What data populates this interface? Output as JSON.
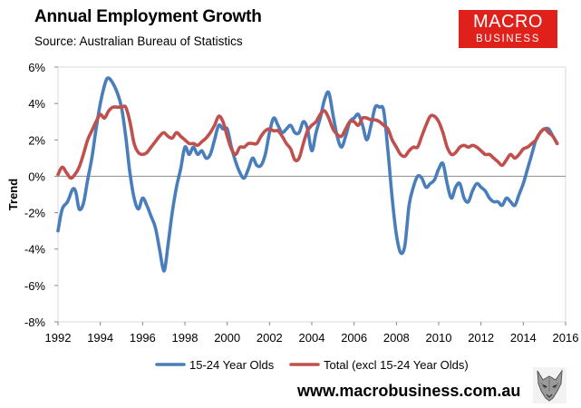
{
  "header": {
    "title": "Annual Employment Growth",
    "subtitle": "Source: Australian Bureau of Statistics"
  },
  "logo": {
    "line1": "MACRO",
    "line2": "BUSINESS"
  },
  "footer": {
    "url": "www.macrobusiness.com.au"
  },
  "colors": {
    "youth": "#4a7ebb",
    "total": "#c0504d",
    "logo_bg": "#e0201b"
  },
  "chart_data": {
    "type": "line",
    "title": "Annual Employment Growth",
    "xlabel": "",
    "ylabel": "Trend",
    "xlim": [
      1992,
      2016
    ],
    "ylim": [
      -8,
      6
    ],
    "xticks": [
      "1992",
      "1994",
      "1996",
      "1998",
      "2000",
      "2002",
      "2004",
      "2006",
      "2008",
      "2010",
      "2012",
      "2014",
      "2016"
    ],
    "yticks": [
      "6%",
      "4%",
      "2%",
      "0%",
      "-2%",
      "-4%",
      "-6%",
      "-8%"
    ],
    "grid": false,
    "legend": "bottom",
    "series": [
      {
        "name": "15-24 Year Olds",
        "color": "#4a7ebb",
        "points": [
          [
            1992.0,
            -3.0
          ],
          [
            1992.2,
            -1.8
          ],
          [
            1992.45,
            -1.4
          ],
          [
            1992.7,
            -0.7
          ],
          [
            1992.85,
            -0.9
          ],
          [
            1993.0,
            -1.8
          ],
          [
            1993.2,
            -1.5
          ],
          [
            1993.4,
            -0.2
          ],
          [
            1993.6,
            1.0
          ],
          [
            1993.8,
            2.6
          ],
          [
            1994.0,
            4.0
          ],
          [
            1994.2,
            5.0
          ],
          [
            1994.35,
            5.4
          ],
          [
            1994.55,
            5.2
          ],
          [
            1994.8,
            4.6
          ],
          [
            1995.0,
            3.8
          ],
          [
            1995.2,
            2.2
          ],
          [
            1995.4,
            0.2
          ],
          [
            1995.6,
            -1.2
          ],
          [
            1995.8,
            -1.8
          ],
          [
            1996.0,
            -1.2
          ],
          [
            1996.2,
            -1.6
          ],
          [
            1996.4,
            -2.2
          ],
          [
            1996.6,
            -2.8
          ],
          [
            1996.8,
            -4.0
          ],
          [
            1996.95,
            -5.0
          ],
          [
            1997.05,
            -5.1
          ],
          [
            1997.2,
            -3.8
          ],
          [
            1997.4,
            -2.0
          ],
          [
            1997.6,
            -0.6
          ],
          [
            1997.8,
            0.4
          ],
          [
            1998.0,
            1.6
          ],
          [
            1998.2,
            1.2
          ],
          [
            1998.4,
            1.6
          ],
          [
            1998.6,
            1.2
          ],
          [
            1998.8,
            1.4
          ],
          [
            1999.0,
            1.0
          ],
          [
            1999.2,
            1.2
          ],
          [
            1999.4,
            2.0
          ],
          [
            1999.6,
            2.8
          ],
          [
            1999.8,
            2.6
          ],
          [
            2000.0,
            2.6
          ],
          [
            2000.2,
            1.6
          ],
          [
            2000.4,
            0.8
          ],
          [
            2000.6,
            0.2
          ],
          [
            2000.8,
            -0.1
          ],
          [
            2001.0,
            0.4
          ],
          [
            2001.2,
            1.0
          ],
          [
            2001.4,
            0.6
          ],
          [
            2001.6,
            0.6
          ],
          [
            2001.8,
            1.2
          ],
          [
            2002.0,
            2.4
          ],
          [
            2002.2,
            3.2
          ],
          [
            2002.4,
            2.8
          ],
          [
            2002.6,
            2.4
          ],
          [
            2002.8,
            2.6
          ],
          [
            2003.0,
            2.8
          ],
          [
            2003.2,
            2.4
          ],
          [
            2003.4,
            2.4
          ],
          [
            2003.6,
            3.0
          ],
          [
            2003.8,
            2.6
          ],
          [
            2004.0,
            1.4
          ],
          [
            2004.2,
            2.4
          ],
          [
            2004.4,
            3.2
          ],
          [
            2004.6,
            4.2
          ],
          [
            2004.8,
            4.6
          ],
          [
            2005.0,
            3.4
          ],
          [
            2005.2,
            2.2
          ],
          [
            2005.4,
            1.6
          ],
          [
            2005.6,
            2.2
          ],
          [
            2005.8,
            3.0
          ],
          [
            2006.0,
            3.2
          ],
          [
            2006.2,
            3.4
          ],
          [
            2006.4,
            2.8
          ],
          [
            2006.6,
            2.0
          ],
          [
            2006.8,
            2.8
          ],
          [
            2007.0,
            3.8
          ],
          [
            2007.2,
            3.8
          ],
          [
            2007.4,
            3.6
          ],
          [
            2007.6,
            1.4
          ],
          [
            2007.8,
            -1.2
          ],
          [
            2008.0,
            -3.2
          ],
          [
            2008.2,
            -4.2
          ],
          [
            2008.4,
            -3.8
          ],
          [
            2008.6,
            -1.6
          ],
          [
            2008.8,
            -0.6
          ],
          [
            2009.0,
            0.0
          ],
          [
            2009.2,
            -0.1
          ],
          [
            2009.4,
            -0.6
          ],
          [
            2009.6,
            -0.4
          ],
          [
            2009.8,
            -0.2
          ],
          [
            2010.0,
            0.4
          ],
          [
            2010.2,
            0.7
          ],
          [
            2010.4,
            -0.4
          ],
          [
            2010.6,
            -1.2
          ],
          [
            2010.8,
            -0.6
          ],
          [
            2011.0,
            -0.4
          ],
          [
            2011.2,
            -1.2
          ],
          [
            2011.4,
            -1.4
          ],
          [
            2011.6,
            -0.8
          ],
          [
            2011.8,
            -0.4
          ],
          [
            2012.0,
            -0.6
          ],
          [
            2012.2,
            -0.8
          ],
          [
            2012.4,
            -1.2
          ],
          [
            2012.6,
            -1.4
          ],
          [
            2012.8,
            -1.4
          ],
          [
            2013.0,
            -1.6
          ],
          [
            2013.2,
            -1.2
          ],
          [
            2013.4,
            -1.4
          ],
          [
            2013.6,
            -1.6
          ],
          [
            2013.8,
            -1.0
          ],
          [
            2014.0,
            -0.4
          ],
          [
            2014.2,
            0.4
          ],
          [
            2014.4,
            1.2
          ],
          [
            2014.6,
            2.0
          ],
          [
            2014.8,
            2.4
          ],
          [
            2015.0,
            2.6
          ],
          [
            2015.2,
            2.6
          ],
          [
            2015.4,
            2.2
          ],
          [
            2015.6,
            1.8
          ]
        ]
      },
      {
        "name": "Total (excl 15-24 Year Olds)",
        "color": "#c0504d",
        "points": [
          [
            1992.0,
            0.1
          ],
          [
            1992.2,
            0.5
          ],
          [
            1992.4,
            0.2
          ],
          [
            1992.6,
            -0.1
          ],
          [
            1992.8,
            0.1
          ],
          [
            1993.0,
            0.5
          ],
          [
            1993.2,
            1.2
          ],
          [
            1993.4,
            2.0
          ],
          [
            1993.6,
            2.5
          ],
          [
            1993.8,
            3.0
          ],
          [
            1994.0,
            3.4
          ],
          [
            1994.2,
            3.2
          ],
          [
            1994.4,
            3.6
          ],
          [
            1994.6,
            3.8
          ],
          [
            1994.8,
            3.8
          ],
          [
            1995.0,
            3.8
          ],
          [
            1995.2,
            3.8
          ],
          [
            1995.4,
            3.0
          ],
          [
            1995.6,
            1.8
          ],
          [
            1995.8,
            1.3
          ],
          [
            1996.0,
            1.2
          ],
          [
            1996.2,
            1.3
          ],
          [
            1996.4,
            1.6
          ],
          [
            1996.6,
            1.9
          ],
          [
            1996.8,
            2.2
          ],
          [
            1997.0,
            2.4
          ],
          [
            1997.2,
            2.2
          ],
          [
            1997.4,
            2.1
          ],
          [
            1997.6,
            2.4
          ],
          [
            1997.8,
            2.2
          ],
          [
            1998.0,
            2.0
          ],
          [
            1998.2,
            1.8
          ],
          [
            1998.4,
            1.8
          ],
          [
            1998.6,
            1.7
          ],
          [
            1998.8,
            1.9
          ],
          [
            1999.0,
            2.1
          ],
          [
            1999.2,
            2.4
          ],
          [
            1999.4,
            2.8
          ],
          [
            1999.6,
            3.3
          ],
          [
            1999.8,
            3.0
          ],
          [
            2000.0,
            2.2
          ],
          [
            2000.2,
            1.5
          ],
          [
            2000.4,
            1.2
          ],
          [
            2000.6,
            1.6
          ],
          [
            2000.8,
            1.6
          ],
          [
            2001.0,
            1.8
          ],
          [
            2001.2,
            1.8
          ],
          [
            2001.4,
            1.8
          ],
          [
            2001.6,
            2.2
          ],
          [
            2001.8,
            2.5
          ],
          [
            2002.0,
            2.6
          ],
          [
            2002.2,
            2.5
          ],
          [
            2002.4,
            2.5
          ],
          [
            2002.6,
            2.2
          ],
          [
            2002.8,
            1.8
          ],
          [
            2003.0,
            1.5
          ],
          [
            2003.2,
            0.9
          ],
          [
            2003.4,
            1.0
          ],
          [
            2003.6,
            1.8
          ],
          [
            2003.8,
            2.5
          ],
          [
            2004.0,
            2.8
          ],
          [
            2004.2,
            3.0
          ],
          [
            2004.4,
            3.4
          ],
          [
            2004.6,
            3.6
          ],
          [
            2004.8,
            3.2
          ],
          [
            2005.0,
            2.6
          ],
          [
            2005.2,
            2.3
          ],
          [
            2005.4,
            2.2
          ],
          [
            2005.6,
            2.6
          ],
          [
            2005.8,
            3.0
          ],
          [
            2006.0,
            3.0
          ],
          [
            2006.2,
            2.8
          ],
          [
            2006.4,
            3.2
          ],
          [
            2006.6,
            3.2
          ],
          [
            2006.8,
            3.1
          ],
          [
            2007.0,
            3.1
          ],
          [
            2007.2,
            3.0
          ],
          [
            2007.4,
            2.8
          ],
          [
            2007.6,
            2.6
          ],
          [
            2007.8,
            2.0
          ],
          [
            2008.0,
            1.6
          ],
          [
            2008.2,
            1.2
          ],
          [
            2008.4,
            1.1
          ],
          [
            2008.6,
            1.4
          ],
          [
            2008.8,
            1.6
          ],
          [
            2009.0,
            1.6
          ],
          [
            2009.2,
            2.2
          ],
          [
            2009.4,
            2.8
          ],
          [
            2009.6,
            3.3
          ],
          [
            2009.8,
            3.3
          ],
          [
            2010.0,
            3.0
          ],
          [
            2010.2,
            2.4
          ],
          [
            2010.4,
            1.6
          ],
          [
            2010.6,
            1.2
          ],
          [
            2010.8,
            1.3
          ],
          [
            2011.0,
            1.6
          ],
          [
            2011.2,
            1.7
          ],
          [
            2011.4,
            1.6
          ],
          [
            2011.6,
            1.7
          ],
          [
            2011.8,
            1.6
          ],
          [
            2012.0,
            1.4
          ],
          [
            2012.2,
            1.2
          ],
          [
            2012.4,
            1.2
          ],
          [
            2012.6,
            1.0
          ],
          [
            2012.8,
            0.8
          ],
          [
            2013.0,
            0.6
          ],
          [
            2013.2,
            0.9
          ],
          [
            2013.4,
            1.2
          ],
          [
            2013.6,
            1.0
          ],
          [
            2013.8,
            1.2
          ],
          [
            2014.0,
            1.5
          ],
          [
            2014.2,
            1.6
          ],
          [
            2014.4,
            1.8
          ],
          [
            2014.6,
            2.0
          ],
          [
            2014.8,
            2.4
          ],
          [
            2015.0,
            2.6
          ],
          [
            2015.2,
            2.4
          ],
          [
            2015.4,
            2.2
          ],
          [
            2015.6,
            1.8
          ]
        ]
      }
    ]
  }
}
